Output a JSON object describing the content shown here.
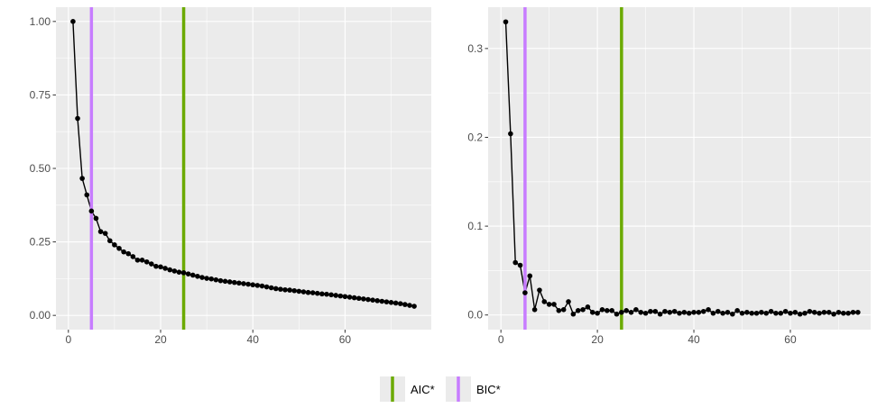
{
  "colors": {
    "panel_bg": "#EBEBEB",
    "grid_major": "#FFFFFF",
    "tick": "#333333",
    "line": "#000000",
    "AIC": "#6BAA00",
    "BIC": "#C77CFF"
  },
  "legend": {
    "position": "bottom",
    "items": [
      {
        "label": "AIC*",
        "color": "#6BAA00"
      },
      {
        "label": "BIC*",
        "color": "#C77CFF"
      }
    ]
  },
  "chart_data": [
    {
      "type": "line",
      "title": "",
      "xlabel": "",
      "ylabel": "",
      "xlim": [
        -2.7,
        78.7
      ],
      "ylim": [
        -0.0485,
        1.0485
      ],
      "x_major_ticks": [
        0,
        20,
        40,
        60
      ],
      "x_minor_ticks": [
        10,
        30,
        50,
        70
      ],
      "y_major_ticks": [
        0,
        0.25,
        0.5,
        0.75,
        1.0
      ],
      "y_minor_ticks": [
        0.125,
        0.375,
        0.625,
        0.875
      ],
      "x_tick_labels": [
        "0",
        "20",
        "40",
        "60"
      ],
      "y_tick_labels": [
        "0.00",
        "0.25",
        "0.50",
        "0.75",
        "1.00"
      ],
      "vlines": [
        {
          "name": "AIC*",
          "x": 25,
          "color": "#6BAA00"
        },
        {
          "name": "BIC*",
          "x": 5,
          "color": "#C77CFF"
        }
      ],
      "series": [
        {
          "x": [
            1,
            2,
            3,
            4,
            5,
            6,
            7,
            8,
            9,
            10,
            11,
            12,
            13,
            14,
            15,
            16,
            17,
            18,
            19,
            20,
            21,
            22,
            23,
            24,
            25,
            26,
            27,
            28,
            29,
            30,
            31,
            32,
            33,
            34,
            35,
            36,
            37,
            38,
            39,
            40,
            41,
            42,
            43,
            44,
            45,
            46,
            47,
            48,
            49,
            50,
            51,
            52,
            53,
            54,
            55,
            56,
            57,
            58,
            59,
            60,
            61,
            62,
            63,
            64,
            65,
            66,
            67,
            68,
            69,
            70,
            71,
            72,
            73,
            74,
            75
          ],
          "y": [
            1.0,
            0.67,
            0.466,
            0.41,
            0.355,
            0.33,
            0.285,
            0.279,
            0.254,
            0.24,
            0.228,
            0.216,
            0.21,
            0.2,
            0.188,
            0.188,
            0.182,
            0.175,
            0.167,
            0.165,
            0.16,
            0.155,
            0.151,
            0.147,
            0.145,
            0.141,
            0.137,
            0.133,
            0.129,
            0.126,
            0.124,
            0.121,
            0.118,
            0.116,
            0.114,
            0.112,
            0.11,
            0.108,
            0.106,
            0.104,
            0.102,
            0.1,
            0.097,
            0.094,
            0.091,
            0.089,
            0.087,
            0.086,
            0.084,
            0.082,
            0.08,
            0.078,
            0.077,
            0.075,
            0.073,
            0.072,
            0.07,
            0.068,
            0.066,
            0.064,
            0.062,
            0.06,
            0.058,
            0.056,
            0.054,
            0.052,
            0.05,
            0.048,
            0.046,
            0.044,
            0.042,
            0.04,
            0.037,
            0.034,
            0.031
          ]
        }
      ]
    },
    {
      "type": "line",
      "title": "",
      "xlabel": "",
      "ylabel": "",
      "xlim": [
        -2.65,
        76.65
      ],
      "ylim": [
        -0.0165,
        0.3465
      ],
      "x_major_ticks": [
        0,
        20,
        40,
        60
      ],
      "x_minor_ticks": [
        10,
        30,
        50,
        70
      ],
      "y_major_ticks": [
        0,
        0.1,
        0.2,
        0.3
      ],
      "y_minor_ticks": [
        0.05,
        0.15,
        0.25
      ],
      "x_tick_labels": [
        "0",
        "20",
        "40",
        "60"
      ],
      "y_tick_labels": [
        "0.0",
        "0.1",
        "0.2",
        "0.3"
      ],
      "vlines": [
        {
          "name": "AIC*",
          "x": 25,
          "color": "#6BAA00"
        },
        {
          "name": "BIC*",
          "x": 5,
          "color": "#C77CFF"
        }
      ],
      "series": [
        {
          "x": [
            1,
            2,
            3,
            4,
            5,
            6,
            7,
            8,
            9,
            10,
            11,
            12,
            13,
            14,
            15,
            16,
            17,
            18,
            19,
            20,
            21,
            22,
            23,
            24,
            25,
            26,
            27,
            28,
            29,
            30,
            31,
            32,
            33,
            34,
            35,
            36,
            37,
            38,
            39,
            40,
            41,
            42,
            43,
            44,
            45,
            46,
            47,
            48,
            49,
            50,
            51,
            52,
            53,
            54,
            55,
            56,
            57,
            58,
            59,
            60,
            61,
            62,
            63,
            64,
            65,
            66,
            67,
            68,
            69,
            70,
            71,
            72,
            73,
            74
          ],
          "y": [
            0.33,
            0.204,
            0.059,
            0.056,
            0.025,
            0.044,
            0.006,
            0.028,
            0.015,
            0.012,
            0.012,
            0.005,
            0.006,
            0.015,
            0.001,
            0.005,
            0.006,
            0.009,
            0.003,
            0.002,
            0.006,
            0.005,
            0.005,
            0.001,
            0.003,
            0.005,
            0.003,
            0.006,
            0.003,
            0.002,
            0.004,
            0.004,
            0.001,
            0.004,
            0.003,
            0.004,
            0.002,
            0.003,
            0.002,
            0.003,
            0.003,
            0.004,
            0.006,
            0.002,
            0.004,
            0.002,
            0.003,
            0.001,
            0.005,
            0.002,
            0.003,
            0.002,
            0.002,
            0.003,
            0.002,
            0.004,
            0.002,
            0.002,
            0.004,
            0.002,
            0.003,
            0.001,
            0.002,
            0.004,
            0.003,
            0.002,
            0.003,
            0.003,
            0.001,
            0.003,
            0.002,
            0.002,
            0.003,
            0.003
          ]
        }
      ]
    }
  ]
}
